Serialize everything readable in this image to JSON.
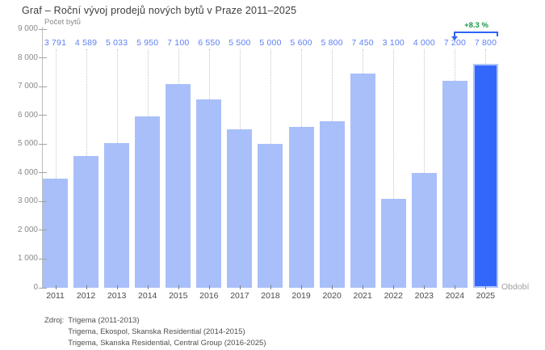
{
  "title": "Graf – Roční vývoj prodejů nových bytů v Praze 2011–2025",
  "footer": {
    "label": "Zdroj:",
    "lines": [
      "Trigema (2011-2013)",
      "Trigema, Ekospol, Skanska Residential (2014-2015)",
      "Trigema, Skanska Residential, Central Group (2016-2025)"
    ]
  },
  "chart_data": {
    "type": "bar",
    "title": "Graf – Roční vývoj prodejů nových bytů v Praze 2011–2025",
    "xlabel": "Období",
    "ylabel": "Počet bytů",
    "categories": [
      "2011",
      "2012",
      "2013",
      "2014",
      "2015",
      "2016",
      "2017",
      "2018",
      "2019",
      "2020",
      "2021",
      "2022",
      "2023",
      "2024",
      "2025"
    ],
    "values": [
      3791,
      4589,
      5033,
      5950,
      7100,
      6550,
      5500,
      5000,
      5600,
      5800,
      7450,
      3100,
      4000,
      7200,
      7800
    ],
    "value_labels": [
      "3 791",
      "4 589",
      "5 033",
      "5 950",
      "7 100",
      "6 550",
      "5 500",
      "5 000",
      "5 600",
      "5 800",
      "7 450",
      "3 100",
      "4 000",
      "7 200",
      "7 800"
    ],
    "ylim": [
      0,
      9000
    ],
    "ytick_step": 1000,
    "ytick_labels": [
      "0",
      "1 000",
      "2 000",
      "3 000",
      "4 000",
      "5 000",
      "6 000",
      "7 000",
      "8 000",
      "9 000"
    ],
    "grid": "none",
    "legend": "none",
    "highlight_index": 14,
    "annotation": {
      "text": "+8.3 %",
      "from_category": "2024",
      "to_category": "2025"
    },
    "colors": {
      "bar": "#a9bffa",
      "bar_highlight": "#3366fb",
      "value_label": "#5e80f4",
      "annotation_green": "#18984a",
      "annotation_line": "#2f63f3"
    }
  }
}
